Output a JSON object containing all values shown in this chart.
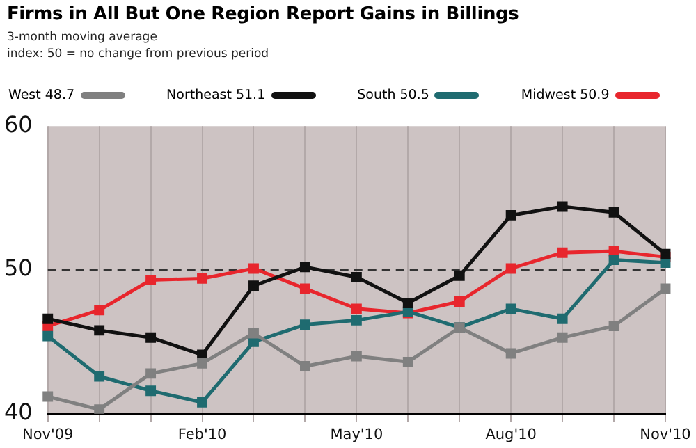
{
  "chart_data": {
    "type": "line",
    "title": "Firms in All But One Region Report Gains in Billings",
    "subtitle": "3-month moving average\nindex: 50 = no change from previous period",
    "categories": [
      "Nov'09",
      null,
      null,
      "Feb'10",
      null,
      null,
      "May'10",
      null,
      null,
      "Aug'10",
      null,
      null,
      "Nov'10"
    ],
    "series": [
      {
        "name": "West 48.7",
        "color": "#808080",
        "values": [
          41.2,
          40.3,
          42.8,
          43.5,
          45.6,
          43.3,
          44.0,
          43.6,
          46.0,
          44.2,
          45.3,
          46.1,
          48.7
        ]
      },
      {
        "name": "Northeast 51.1",
        "color": "#111111",
        "values": [
          46.6,
          45.8,
          45.3,
          44.1,
          48.9,
          50.2,
          49.5,
          47.7,
          49.6,
          53.8,
          54.4,
          54.0,
          51.1
        ]
      },
      {
        "name": "South 50.5",
        "color": "#1f6b70",
        "values": [
          45.4,
          42.6,
          41.6,
          40.8,
          45.0,
          46.2,
          46.5,
          47.1,
          46.0,
          47.3,
          46.6,
          50.7,
          50.5
        ]
      },
      {
        "name": "Midwest 50.9",
        "color": "#e8262d",
        "values": [
          46.1,
          47.2,
          49.3,
          49.4,
          50.1,
          48.7,
          47.3,
          47.0,
          47.8,
          50.1,
          51.2,
          51.3,
          50.9
        ]
      }
    ],
    "ylim": [
      40,
      60
    ],
    "yticks": [
      40,
      50,
      60
    ],
    "ref_lines": [
      {
        "axis": "y",
        "value": 50,
        "color": "#333333",
        "line_style": "dashed"
      }
    ],
    "grid": "x",
    "legend": "top",
    "marker": "square",
    "line_style": "solid"
  }
}
